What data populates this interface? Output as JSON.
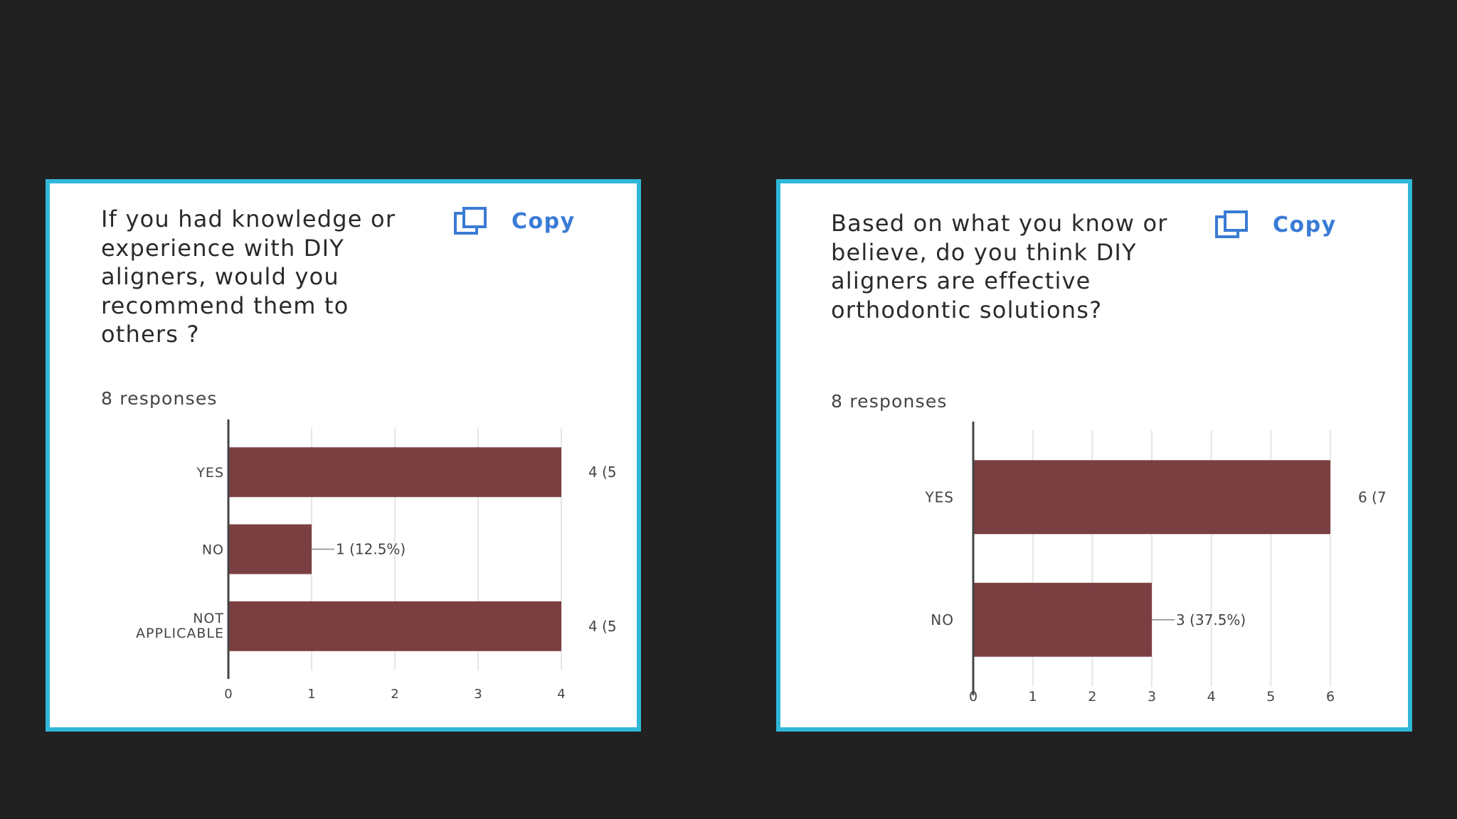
{
  "colors": {
    "background": "#212121",
    "card_border": "#31b8d8",
    "bar": "#7b3f42",
    "copy_accent": "#3a7bd5"
  },
  "cards": [
    {
      "question": "If you had knowledge or experience with DIY aligners, would you recommend them to others ?",
      "responses": "8 responses",
      "copy_label": "Copy",
      "copy_icon": "copy-icon"
    },
    {
      "question": "Based on what you know or believe, do you think DIY aligners are effective orthodontic solutions?",
      "responses": "8 responses",
      "copy_label": "Copy",
      "copy_icon": "copy-icon"
    }
  ],
  "chart_data": [
    {
      "type": "bar",
      "orientation": "horizontal",
      "categories": [
        "YES",
        "NO",
        "NOT APPLICABLE"
      ],
      "values": [
        4,
        1,
        4
      ],
      "data_labels": [
        "4 (5",
        "1 (12.5%)",
        "4 (5"
      ],
      "xlim": [
        0,
        4
      ],
      "xticks": [
        "0",
        "1",
        "2",
        "3",
        "4"
      ],
      "grid": true
    },
    {
      "type": "bar",
      "orientation": "horizontal",
      "categories": [
        "YES",
        "NO"
      ],
      "values": [
        6,
        3
      ],
      "data_labels": [
        "6 (7",
        "3 (37.5%)"
      ],
      "xlim": [
        0,
        6
      ],
      "xticks": [
        "0",
        "1",
        "2",
        "3",
        "4",
        "5",
        "6"
      ],
      "grid": true
    }
  ]
}
